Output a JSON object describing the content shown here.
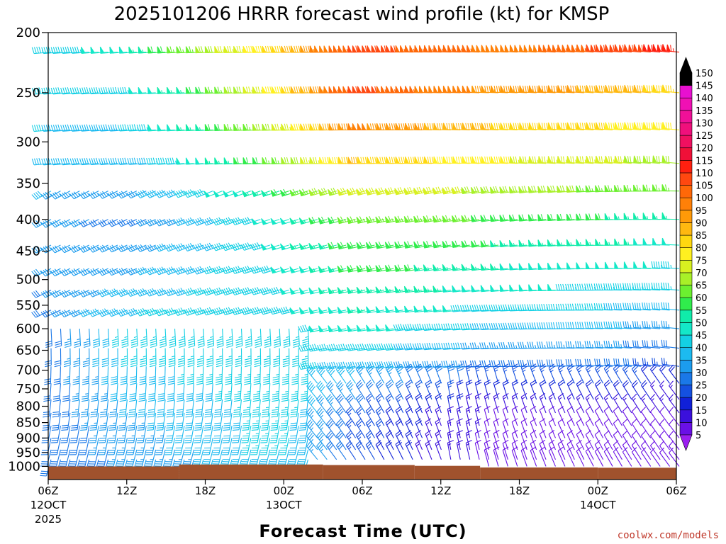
{
  "chart_data": {
    "type": "wind-barb time-height",
    "title": "2025101206 HRRR forecast wind profile (kt) for KMSP",
    "xlabel": "Forecast Time (UTC)",
    "ylabel": "",
    "y_axis": {
      "scale": "log-pressure",
      "reversed": true,
      "ylim": [
        1050,
        200
      ],
      "ticks": [
        200,
        250,
        300,
        350,
        400,
        450,
        500,
        550,
        600,
        650,
        700,
        750,
        800,
        850,
        900,
        950,
        1000
      ]
    },
    "x_axis": {
      "hours_range": [
        0,
        48
      ],
      "ticks": [
        {
          "hour": 0,
          "label": "06Z",
          "sub": "12OCT",
          "sub2": "2025"
        },
        {
          "hour": 6,
          "label": "12Z",
          "sub": "",
          "sub2": ""
        },
        {
          "hour": 12,
          "label": "18Z",
          "sub": "",
          "sub2": ""
        },
        {
          "hour": 18,
          "label": "00Z",
          "sub": "13OCT",
          "sub2": ""
        },
        {
          "hour": 24,
          "label": "06Z",
          "sub": "",
          "sub2": ""
        },
        {
          "hour": 30,
          "label": "12Z",
          "sub": "",
          "sub2": ""
        },
        {
          "hour": 36,
          "label": "18Z",
          "sub": "",
          "sub2": ""
        },
        {
          "hour": 42,
          "label": "00Z",
          "sub": "14OCT",
          "sub2": ""
        },
        {
          "hour": 48,
          "label": "06Z",
          "sub": "",
          "sub2": ""
        }
      ]
    },
    "levels_hpa": [
      215,
      250,
      287,
      325,
      360,
      400,
      440,
      480,
      520,
      560,
      600,
      645,
      690,
      735,
      780,
      820,
      860,
      900,
      940,
      975,
      1000
    ],
    "surface_pressure": [
      {
        "from_hour": 0,
        "to_hour": 10,
        "p": 1000
      },
      {
        "from_hour": 10,
        "to_hour": 21,
        "p": 993
      },
      {
        "from_hour": 21,
        "to_hour": 28,
        "p": 995
      },
      {
        "from_hour": 28,
        "to_hour": 33,
        "p": 998
      },
      {
        "from_hour": 33,
        "to_hour": 42,
        "p": 1004
      },
      {
        "from_hour": 42,
        "to_hour": 48,
        "p": 1005
      }
    ],
    "colorbar": {
      "unit": "kt",
      "levels": [
        5,
        10,
        15,
        20,
        25,
        30,
        35,
        40,
        45,
        50,
        55,
        60,
        65,
        70,
        75,
        80,
        85,
        90,
        95,
        100,
        105,
        110,
        115,
        120,
        125,
        130,
        135,
        140,
        145,
        150
      ],
      "colors": [
        "#9b1ff0",
        "#6a10e6",
        "#3b10dc",
        "#1020d8",
        "#1450e0",
        "#1a78e8",
        "#1c9cee",
        "#1cbaf0",
        "#14d0e4",
        "#14e8c8",
        "#10ecaa",
        "#30ec4c",
        "#6cf030",
        "#a8f028",
        "#d8f020",
        "#fff020",
        "#ffd810",
        "#ffb810",
        "#ff9a08",
        "#ff8008",
        "#ff6808",
        "#ff4810",
        "#ff2010",
        "#f01038",
        "#f01060",
        "#f0107c",
        "#f01098",
        "#f010b4",
        "#e810d0",
        "#000000"
      ]
    },
    "wind_summary": [
      {
        "level": 215,
        "speed_kt_by_hour": [
          [
            0,
            45
          ],
          [
            6,
            50
          ],
          [
            12,
            68
          ],
          [
            18,
            85
          ],
          [
            24,
            110
          ],
          [
            30,
            105
          ],
          [
            36,
            100
          ],
          [
            42,
            108
          ],
          [
            48,
            115
          ]
        ]
      },
      {
        "level": 250,
        "speed_kt_by_hour": [
          [
            0,
            45
          ],
          [
            6,
            45
          ],
          [
            12,
            60
          ],
          [
            18,
            80
          ],
          [
            24,
            110
          ],
          [
            30,
            100
          ],
          [
            36,
            95
          ],
          [
            42,
            92
          ],
          [
            48,
            85
          ]
        ]
      },
      {
        "level": 400,
        "speed_kt_by_hour": [
          [
            0,
            35
          ],
          [
            6,
            30
          ],
          [
            12,
            40
          ],
          [
            18,
            50
          ],
          [
            24,
            65
          ],
          [
            30,
            65
          ],
          [
            36,
            60
          ],
          [
            42,
            58
          ],
          [
            48,
            55
          ]
        ]
      },
      {
        "level": 600,
        "speed_kt_by_hour": [
          [
            0,
            30
          ],
          [
            6,
            45
          ],
          [
            12,
            45
          ],
          [
            18,
            45
          ],
          [
            24,
            50
          ],
          [
            30,
            45
          ],
          [
            36,
            40
          ],
          [
            42,
            40
          ],
          [
            48,
            35
          ]
        ]
      },
      {
        "level": 850,
        "speed_kt_by_hour": [
          [
            0,
            30
          ],
          [
            6,
            35
          ],
          [
            12,
            40
          ],
          [
            18,
            45
          ],
          [
            24,
            25
          ],
          [
            30,
            15
          ],
          [
            36,
            10
          ],
          [
            42,
            10
          ],
          [
            48,
            10
          ]
        ]
      }
    ]
  },
  "credit": "coolwx.com/models"
}
